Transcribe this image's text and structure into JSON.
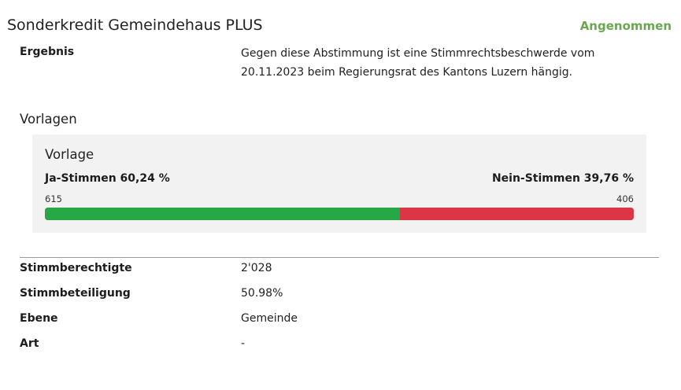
{
  "header": {
    "title": "Sonderkredit Gemeindehaus PLUS",
    "status": "Angenommen",
    "status_color": "#6aa84f"
  },
  "ergebnis": {
    "label": "Ergebnis",
    "text": "Gegen diese Abstimmung ist eine Stimmrechtsbeschwerde vom 20.11.2023 beim Regierungsrat des Kantons Luzern hängig."
  },
  "vorlagen": {
    "heading": "Vorlagen",
    "items": [
      {
        "title": "Vorlage",
        "yes_label": "Ja-Stimmen 60,24 %",
        "no_label": "Nein-Stimmen 39,76 %",
        "yes_count": "615",
        "no_count": "406",
        "yes_percent": 60.24,
        "no_percent": 39.76,
        "yes_color": "#28a745",
        "no_color": "#dc3545"
      }
    ]
  },
  "details": [
    {
      "label": "Stimmberechtigte",
      "value": "2'028"
    },
    {
      "label": "Stimmbeteiligung",
      "value": "50.98%"
    },
    {
      "label": "Ebene",
      "value": "Gemeinde"
    },
    {
      "label": "Art",
      "value": "-"
    }
  ]
}
